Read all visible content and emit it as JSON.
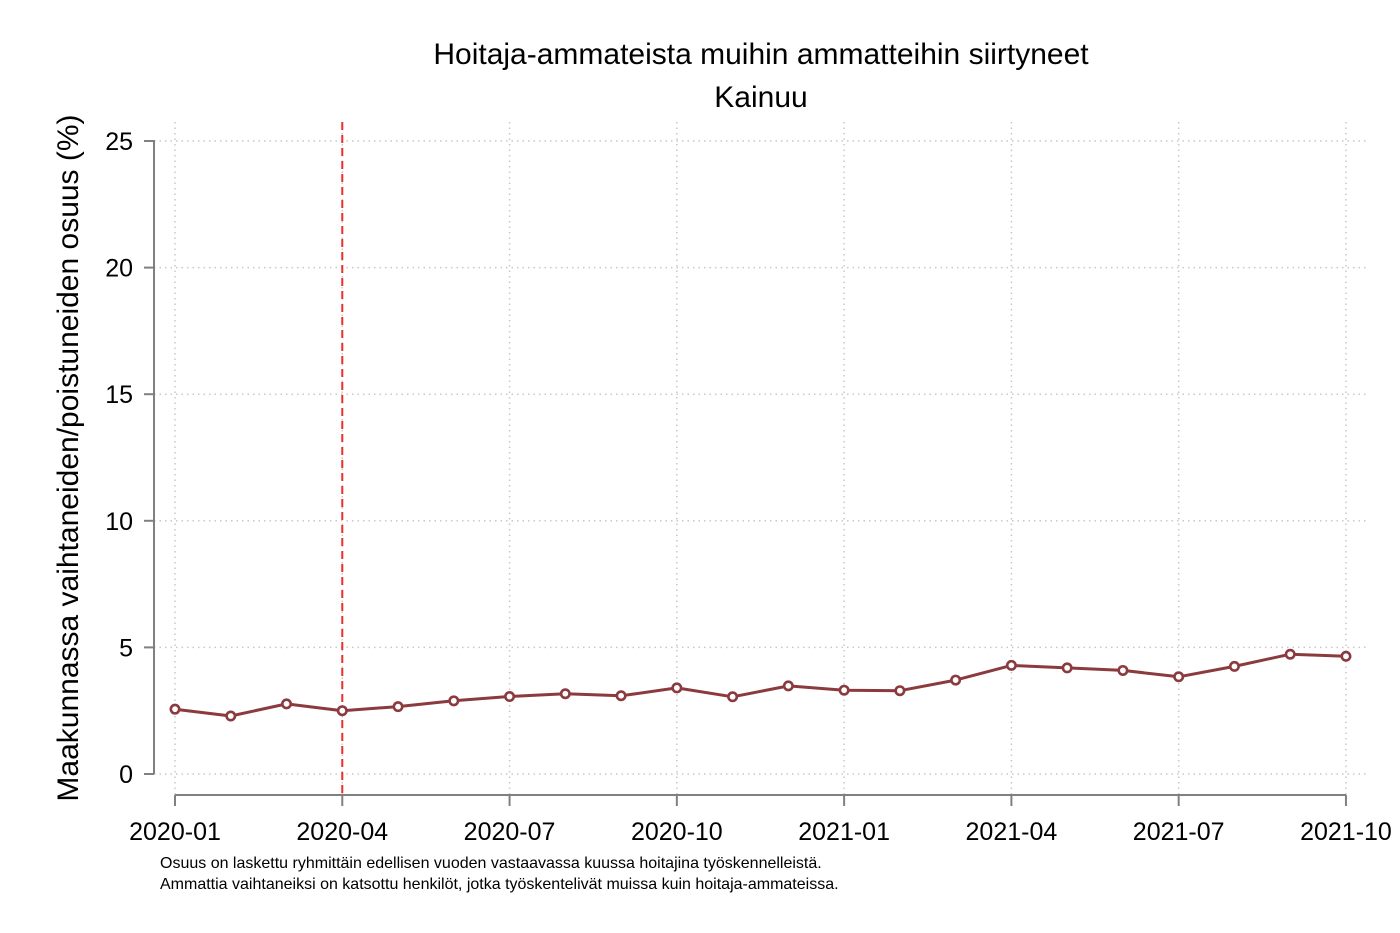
{
  "chart_data": {
    "type": "line",
    "title": "Hoitaja-ammateista muihin ammatteihin siirtyneet",
    "subtitle": "Kainuu",
    "xlabel": "",
    "ylabel": "Maakunnassa vaihtaneiden/poistuneiden osuus (%)",
    "ylim": [
      0,
      25
    ],
    "yticks": [
      0,
      5,
      10,
      15,
      20,
      25
    ],
    "xticks": [
      "2020-01",
      "2020-04",
      "2020-07",
      "2020-10",
      "2021-01",
      "2021-04",
      "2021-07",
      "2021-10"
    ],
    "grid": true,
    "reference_line": {
      "x": "2020-04",
      "color": "#e8312b",
      "style": "dashed"
    },
    "series": [
      {
        "color": "#8b3a3e",
        "x": [
          "2020-01",
          "2020-02",
          "2020-03",
          "2020-04",
          "2020-05",
          "2020-06",
          "2020-07",
          "2020-08",
          "2020-09",
          "2020-10",
          "2020-11",
          "2020-12",
          "2021-01",
          "2021-02",
          "2021-03",
          "2021-04",
          "2021-05",
          "2021-06",
          "2021-07",
          "2021-08",
          "2021-09",
          "2021-10"
        ],
        "values": [
          2.56,
          2.29,
          2.77,
          2.5,
          2.66,
          2.89,
          3.06,
          3.17,
          3.09,
          3.4,
          3.05,
          3.48,
          3.31,
          3.29,
          3.71,
          4.29,
          4.19,
          4.09,
          3.84,
          4.25,
          4.73,
          4.65
        ]
      }
    ],
    "notes": [
      "Osuus on laskettu ryhmittäin edellisen vuoden vastaavassa kuussa hoitajina työskennelleistä.",
      "Ammattia vaihtaneiksi on katsottu henkilöt, jotka työskentelivät muissa kuin hoitaja-ammateissa."
    ]
  }
}
